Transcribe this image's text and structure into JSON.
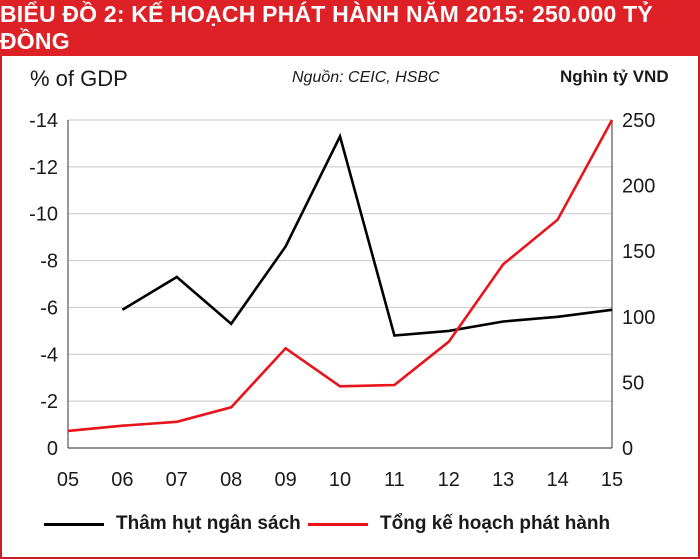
{
  "title": "BIỂU ĐỒ 2: KẾ HOẠCH PHÁT HÀNH NĂM 2015: 250.000 TỶ ĐỒNG",
  "left_axis_unit": "% of GDP",
  "source": "Nguồn: CEIC, HSBC",
  "right_axis_unit": "Nghìn tỷ VND",
  "colors": {
    "title_bg": "#de2127",
    "deficit": "#000000",
    "issuance": "#e8141b"
  },
  "chart_data": {
    "type": "line",
    "categories": [
      "05",
      "06",
      "07",
      "08",
      "09",
      "10",
      "11",
      "12",
      "13",
      "14",
      "15"
    ],
    "left_axis": {
      "label": "% of GDP",
      "range": [
        0,
        -14
      ],
      "ticks": [
        "0",
        "-2",
        "-4",
        "-6",
        "-8",
        "-10",
        "-12",
        "-14"
      ],
      "tick_values": [
        0,
        -2,
        -4,
        -6,
        -8,
        -10,
        -12,
        -14
      ]
    },
    "right_axis": {
      "label": "Nghìn tỷ VND",
      "range": [
        0,
        250
      ],
      "ticks": [
        "0",
        "50",
        "100",
        "150",
        "200",
        "250"
      ],
      "tick_values": [
        0,
        50,
        100,
        150,
        200,
        250
      ]
    },
    "series": [
      {
        "name": "Thâm hụt ngân sách",
        "axis": "left",
        "color": "#000000",
        "values": [
          null,
          -5.9,
          -7.3,
          -5.3,
          -8.6,
          -13.3,
          -4.8,
          -5.0,
          -5.4,
          -5.6,
          -5.9
        ]
      },
      {
        "name": "Tổng kế hoạch phát hành",
        "axis": "right",
        "color": "#e8141b",
        "values": [
          13,
          17,
          20,
          31,
          76,
          47,
          48,
          81,
          140,
          174,
          250
        ]
      }
    ]
  }
}
